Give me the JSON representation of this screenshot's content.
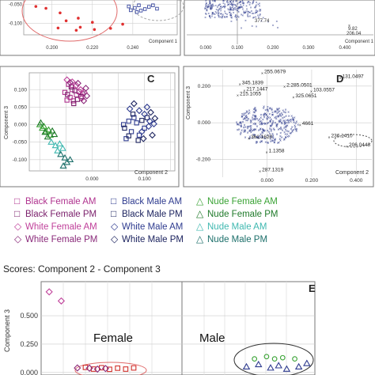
{
  "figure": {
    "scores_title": "Scores: Component 2 - Component 3"
  },
  "legend": [
    {
      "symbol": "□",
      "label": "Black Female AM",
      "color": "#b0338f"
    },
    {
      "symbol": "□",
      "label": "Black Male AM",
      "color": "#2e3b8f"
    },
    {
      "symbol": "△",
      "label": "Nude Female AM",
      "color": "#3aa335"
    },
    {
      "symbol": "□",
      "label": "Black Female PM",
      "color": "#7a1f6b"
    },
    {
      "symbol": "□",
      "label": "Black Male PM",
      "color": "#1e2560"
    },
    {
      "symbol": "△",
      "label": "Nude Female PM",
      "color": "#1f7a2a"
    },
    {
      "symbol": "◇",
      "label": "White Female AM",
      "color": "#c0409a"
    },
    {
      "symbol": "◇",
      "label": "White Male AM",
      "color": "#2e3b8f"
    },
    {
      "symbol": "△",
      "label": "Nude Male AM",
      "color": "#3fb8b0"
    },
    {
      "symbol": "◇",
      "label": "White Female PM",
      "color": "#8a2a7a"
    },
    {
      "symbol": "◇",
      "label": "White Male PM",
      "color": "#1e2560"
    },
    {
      "symbol": "△",
      "label": "Nude Male PM",
      "color": "#1c6f6a"
    }
  ],
  "chart_data": [
    {
      "panel": "A",
      "type": "scatter",
      "xlabel": "Component 1",
      "ylabel": "",
      "x_ticks": [
        "0.200",
        "0.220",
        "0.240"
      ],
      "y_ticks": [
        "-0.050",
        "-0.100"
      ],
      "xlim": [
        0.186,
        0.262
      ],
      "ylim": [
        -0.13,
        -0.038
      ],
      "series": [
        {
          "color": "#e03030",
          "points": [
            [
              0.192,
              -0.055
            ],
            [
              0.197,
              -0.06
            ],
            [
              0.204,
              -0.072
            ],
            [
              0.213,
              -0.086
            ],
            [
              0.207,
              -0.093
            ],
            [
              0.22,
              -0.097
            ],
            [
              0.214,
              -0.11
            ],
            [
              0.203,
              -0.112
            ],
            [
              0.221,
              -0.116
            ],
            [
              0.229,
              -0.113
            ],
            [
              0.235,
              -0.102
            ],
            [
              0.212,
              -0.118
            ]
          ]
        },
        {
          "color": "#3b4aa0",
          "points": [
            [
              0.238,
              -0.055
            ],
            [
              0.241,
              -0.059
            ],
            [
              0.243,
              -0.052
            ],
            [
              0.246,
              -0.062
            ],
            [
              0.239,
              -0.065
            ],
            [
              0.248,
              -0.056
            ],
            [
              0.252,
              -0.061
            ],
            [
              0.244,
              -0.066
            ],
            [
              0.25,
              -0.052
            ],
            [
              0.242,
              -0.07
            ]
          ]
        }
      ]
    },
    {
      "panel": "B",
      "type": "scatter",
      "xlabel": "Component 1",
      "ylabel": "",
      "x_ticks": [
        "0.000",
        "0.100",
        "0.200",
        "0.300",
        "0.400"
      ],
      "y_ticks": [],
      "annotations": [
        "377.74",
        "9.82",
        "206.04"
      ]
    },
    {
      "panel": "C",
      "type": "scatter",
      "xlabel": "Component 2",
      "ylabel": "Component 3",
      "x_ticks": [
        "0.000",
        "0.100"
      ],
      "y_ticks": [
        "0.100",
        "0.050",
        "0.000",
        "-0.050",
        "-0.100"
      ],
      "xlim": [
        -0.12,
        0.158
      ],
      "ylim": [
        -0.132,
        0.148
      ],
      "series": [
        {
          "name": "Black Female AM",
          "color": "#b0338f",
          "marker": "square",
          "points": [
            [
              -0.045,
              0.115
            ],
            [
              -0.038,
              0.1
            ],
            [
              -0.052,
              0.092
            ],
            [
              -0.03,
              0.085
            ],
            [
              -0.042,
              0.078
            ],
            [
              -0.025,
              0.094
            ],
            [
              -0.036,
              0.068
            ],
            [
              -0.048,
              0.07
            ]
          ]
        },
        {
          "name": "Black Female PM",
          "color": "#7a1f6b",
          "marker": "square",
          "points": [
            [
              -0.04,
              0.108
            ],
            [
              -0.033,
              0.097
            ],
            [
              -0.047,
              0.086
            ],
            [
              -0.021,
              0.08
            ],
            [
              -0.028,
              0.072
            ],
            [
              -0.018,
              0.088
            ],
            [
              -0.035,
              0.06
            ]
          ]
        },
        {
          "name": "White Female AM",
          "color": "#c0409a",
          "marker": "diamond",
          "points": [
            [
              -0.048,
              0.128
            ],
            [
              -0.038,
              0.122
            ],
            [
              -0.03,
              0.112
            ],
            [
              -0.022,
              0.1
            ],
            [
              -0.015,
              0.092
            ],
            [
              -0.02,
              0.075
            ]
          ]
        },
        {
          "name": "White Female PM",
          "color": "#8a2a7a",
          "marker": "diamond",
          "points": [
            [
              -0.042,
              0.12
            ],
            [
              -0.027,
              0.118
            ],
            [
              -0.012,
              0.104
            ],
            [
              -0.01,
              0.082
            ],
            [
              -0.016,
              0.068
            ]
          ]
        },
        {
          "name": "Black Male AM",
          "color": "#2e3b8f",
          "marker": "square",
          "points": [
            [
              0.06,
              0.0
            ],
            [
              0.07,
              0.01
            ],
            [
              0.08,
              0.02
            ],
            [
              0.075,
              -0.02
            ],
            [
              0.09,
              -0.03
            ],
            [
              0.065,
              -0.04
            ],
            [
              0.085,
              0.005
            ],
            [
              0.1,
              -0.01
            ]
          ]
        },
        {
          "name": "Black Male PM",
          "color": "#1e2560",
          "marker": "square",
          "points": [
            [
              0.062,
              -0.01
            ],
            [
              0.078,
              0.03
            ],
            [
              0.095,
              0.012
            ],
            [
              0.07,
              -0.032
            ],
            [
              0.105,
              0.02
            ],
            [
              0.088,
              -0.045
            ]
          ]
        },
        {
          "name": "White Male AM",
          "color": "#2e3b8f",
          "marker": "diamond",
          "points": [
            [
              0.072,
              0.045
            ],
            [
              0.09,
              0.04
            ],
            [
              0.1,
              0.03
            ],
            [
              0.11,
              0.01
            ],
            [
              0.095,
              -0.02
            ],
            [
              0.108,
              -0.005
            ],
            [
              0.118,
              0.002
            ],
            [
              0.105,
              0.05
            ]
          ]
        },
        {
          "name": "White Male PM",
          "color": "#1e2560",
          "marker": "diamond",
          "points": [
            [
              0.08,
              0.06
            ],
            [
              0.112,
              0.035
            ],
            [
              0.12,
              0.018
            ],
            [
              0.098,
              -0.04
            ],
            [
              0.115,
              -0.03
            ]
          ]
        },
        {
          "name": "Nude Female AM",
          "color": "#3aa335",
          "marker": "triangle",
          "points": [
            [
              -0.1,
              0.0
            ],
            [
              -0.095,
              -0.01
            ],
            [
              -0.088,
              -0.02
            ],
            [
              -0.08,
              -0.03
            ],
            [
              -0.092,
              -0.005
            ],
            [
              -0.083,
              -0.015
            ]
          ]
        },
        {
          "name": "Nude Female PM",
          "color": "#1f7a2a",
          "marker": "triangle",
          "points": [
            [
              -0.098,
              0.005
            ],
            [
              -0.09,
              -0.022
            ],
            [
              -0.076,
              -0.018
            ],
            [
              -0.085,
              -0.035
            ],
            [
              -0.072,
              -0.028
            ]
          ]
        },
        {
          "name": "Nude Male AM",
          "color": "#3fb8b0",
          "marker": "triangle",
          "points": [
            [
              -0.078,
              -0.05
            ],
            [
              -0.07,
              -0.06
            ],
            [
              -0.062,
              -0.055
            ],
            [
              -0.066,
              -0.075
            ],
            [
              -0.056,
              -0.068
            ]
          ]
        },
        {
          "name": "Nude Male PM",
          "color": "#1c6f6a",
          "marker": "triangle",
          "points": [
            [
              -0.06,
              -0.085
            ],
            [
              -0.052,
              -0.095
            ],
            [
              -0.048,
              -0.108
            ],
            [
              -0.055,
              -0.118
            ],
            [
              -0.042,
              -0.1
            ]
          ]
        }
      ],
      "panel_label": "C"
    },
    {
      "panel": "D",
      "type": "scatter",
      "xlabel": "Component 2",
      "ylabel": "Component 3",
      "x_ticks": [
        "0.000",
        "0.200",
        "0.400"
      ],
      "y_ticks": [
        "0.200",
        "0.000",
        "-0.200"
      ],
      "xlim": [
        -0.24,
        0.47
      ],
      "ylim": [
        -0.34,
        0.29
      ],
      "annotations": [
        {
          "text": "255.0679",
          "x": -0.02,
          "y": 0.27
        },
        {
          "text": "131.0497",
          "x": 0.33,
          "y": 0.245
        },
        {
          "text": "345.1839",
          "x": -0.12,
          "y": 0.21
        },
        {
          "text": "2:285.0501",
          "x": 0.08,
          "y": 0.198
        },
        {
          "text": "217.1447",
          "x": -0.1,
          "y": 0.176
        },
        {
          "text": "103.0557",
          "x": 0.2,
          "y": 0.172
        },
        {
          "text": "215.1055",
          "x": -0.13,
          "y": 0.15
        },
        {
          "text": "325.0651",
          "x": 0.12,
          "y": 0.14
        },
        {
          "text": "4661",
          "x": 0.15,
          "y": -0.012
        },
        {
          "text": "361.1620",
          "x": -0.08,
          "y": -0.085
        },
        {
          "text": "236.1410",
          "x": 0.28,
          "y": -0.08
        },
        {
          "text": "206.0448",
          "x": 0.36,
          "y": -0.128
        },
        {
          "text": "1.1358",
          "x": 0.0,
          "y": -0.16
        },
        {
          "text": "287.1319",
          "x": -0.03,
          "y": -0.265
        }
      ],
      "panel_label": "D"
    },
    {
      "panel": "E",
      "type": "scatter",
      "xlabel": "",
      "ylabel": "Component 3",
      "y_ticks": [
        "0.500",
        "0.250",
        "0.000"
      ],
      "xlim": [
        -0.23,
        0.45
      ],
      "ylim": [
        -0.05,
        0.8
      ],
      "group_labels": [
        "Female",
        "Male"
      ],
      "panel_label": "E",
      "series": [
        {
          "name": "White Female AM",
          "color": "#c0409a",
          "marker": "diamond",
          "points": [
            [
              -0.21,
              0.71
            ],
            [
              -0.18,
              0.63
            ]
          ]
        },
        {
          "name": "Black Female AM",
          "color": "#d0302b",
          "marker": "square",
          "points": [
            [
              -0.12,
              0.045
            ],
            [
              -0.1,
              0.03
            ],
            [
              -0.08,
              0.042
            ],
            [
              -0.06,
              0.028
            ],
            [
              -0.04,
              0.038
            ],
            [
              -0.02,
              0.03
            ],
            [
              0.0,
              0.04
            ]
          ]
        },
        {
          "name": "White Female PM",
          "color": "#8a2a7a",
          "marker": "diamond",
          "points": [
            [
              -0.14,
              0.04
            ],
            [
              -0.11,
              0.038
            ],
            [
              -0.09,
              0.03
            ],
            [
              -0.07,
              0.035
            ]
          ]
        },
        {
          "name": "Nude Female AM",
          "color": "#3aa335",
          "marker": "circle",
          "points": [
            [
              0.3,
              0.12
            ],
            [
              0.33,
              0.14
            ],
            [
              0.35,
              0.12
            ],
            [
              0.37,
              0.13
            ],
            [
              0.4,
              0.12
            ]
          ]
        },
        {
          "name": "Black Male AM",
          "color": "#2e3b8f",
          "marker": "triangle",
          "points": [
            [
              0.28,
              0.05
            ],
            [
              0.31,
              0.07
            ],
            [
              0.34,
              0.04
            ],
            [
              0.36,
              0.06
            ],
            [
              0.38,
              0.03
            ],
            [
              0.41,
              0.05
            ],
            [
              0.43,
              0.08
            ]
          ]
        }
      ]
    }
  ]
}
